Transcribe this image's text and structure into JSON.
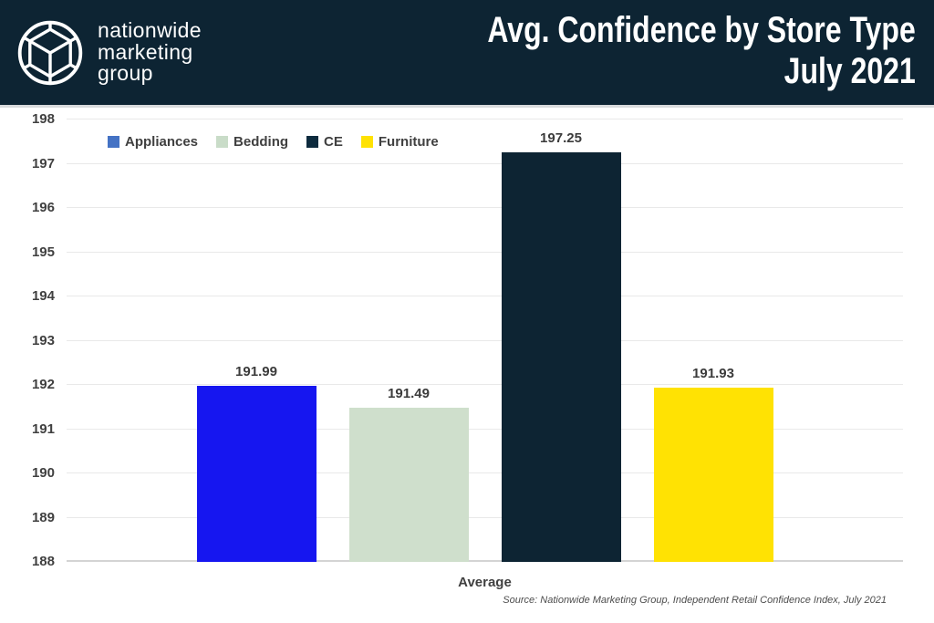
{
  "brand": {
    "line1": "nationwide",
    "line2": "marketing",
    "line3": "group"
  },
  "header": {
    "title_line1": "Avg. Confidence by Store Type",
    "title_line2": "July 2021"
  },
  "source_note": "Source: Nationwide Marketing Group, Independent Retail Confidence Index, July 2021",
  "colors": {
    "header_bg": "#0d2433",
    "grid": "#e9e9e9",
    "label_text": "#404040"
  },
  "chart_data": {
    "type": "bar",
    "title": "Avg. Confidence by Store Type — July 2021",
    "categories": [
      "Average"
    ],
    "series": [
      {
        "name": "Appliances",
        "value": 191.99,
        "label": "191.99",
        "color": "#1616f0",
        "legend_color": "#4472c4"
      },
      {
        "name": "Bedding",
        "value": 191.49,
        "label": "191.49",
        "color": "#cfdfcc",
        "legend_color": "#c9dcc8"
      },
      {
        "name": "CE",
        "value": 197.25,
        "label": "197.25",
        "color": "#0d2433",
        "legend_color": "#0d2b3e"
      },
      {
        "name": "Furniture",
        "value": 191.93,
        "label": "191.93",
        "color": "#ffe203",
        "legend_color": "#ffe203"
      }
    ],
    "xlabel": "Average",
    "ylabel": "",
    "ylim": [
      188,
      198
    ],
    "yticks": [
      188,
      189,
      190,
      191,
      192,
      193,
      194,
      195,
      196,
      197,
      198
    ],
    "grid": true,
    "legend_position": "top-left"
  }
}
